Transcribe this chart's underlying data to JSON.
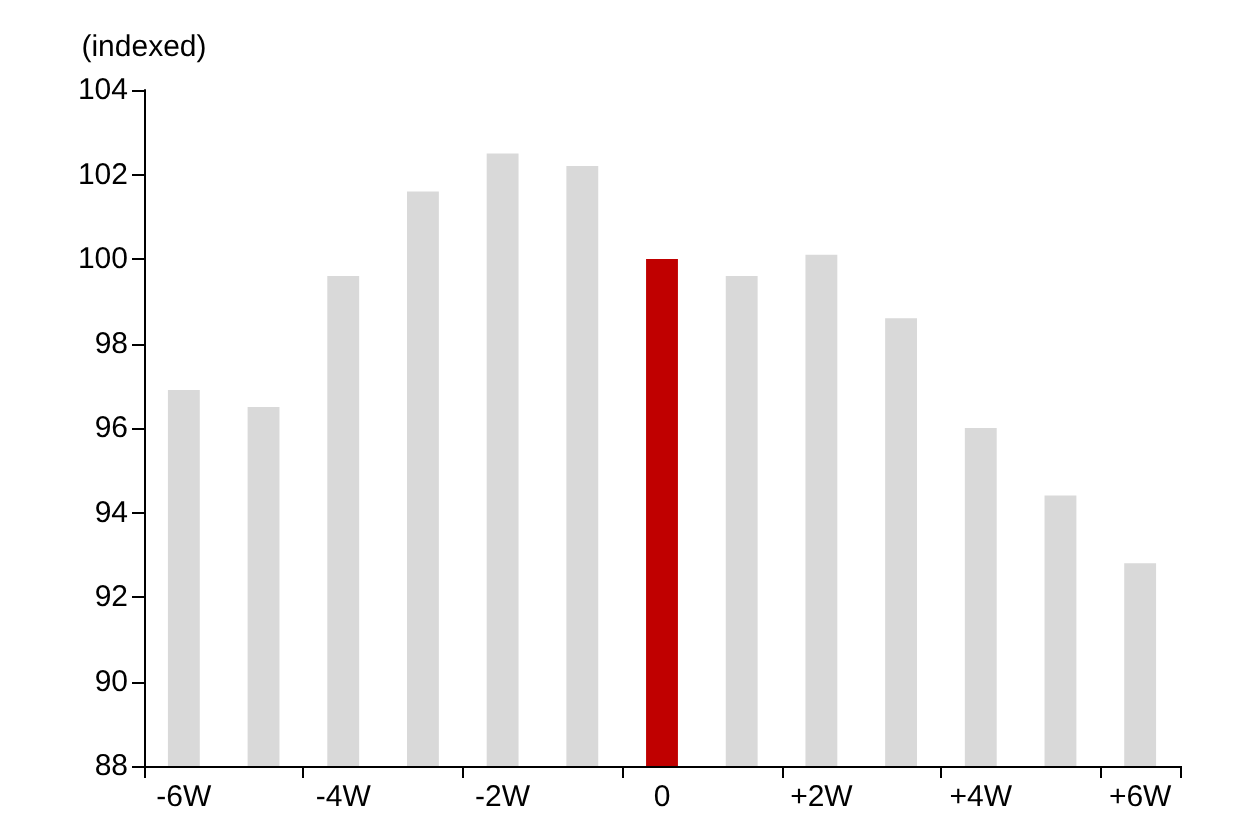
{
  "chart_data": {
    "type": "bar",
    "ylabel": "(indexed)",
    "categories": [
      "-6W",
      null,
      "-4W",
      null,
      "-2W",
      null,
      "0",
      null,
      "+2W",
      null,
      "+4W",
      null,
      "+6W"
    ],
    "values": [
      96.9,
      96.5,
      99.6,
      101.6,
      102.5,
      102.2,
      100,
      99.6,
      100.1,
      98.6,
      96.0,
      94.4,
      92.8
    ],
    "colors": [
      "#d9d9d9",
      "#d9d9d9",
      "#d9d9d9",
      "#d9d9d9",
      "#d9d9d9",
      "#d9d9d9",
      "#c00000",
      "#d9d9d9",
      "#d9d9d9",
      "#d9d9d9",
      "#d9d9d9",
      "#d9d9d9",
      "#d9d9d9"
    ],
    "ylim": [
      88,
      104
    ],
    "yticks": [
      88,
      90,
      92,
      94,
      96,
      98,
      100,
      102,
      104
    ],
    "grid": false
  }
}
